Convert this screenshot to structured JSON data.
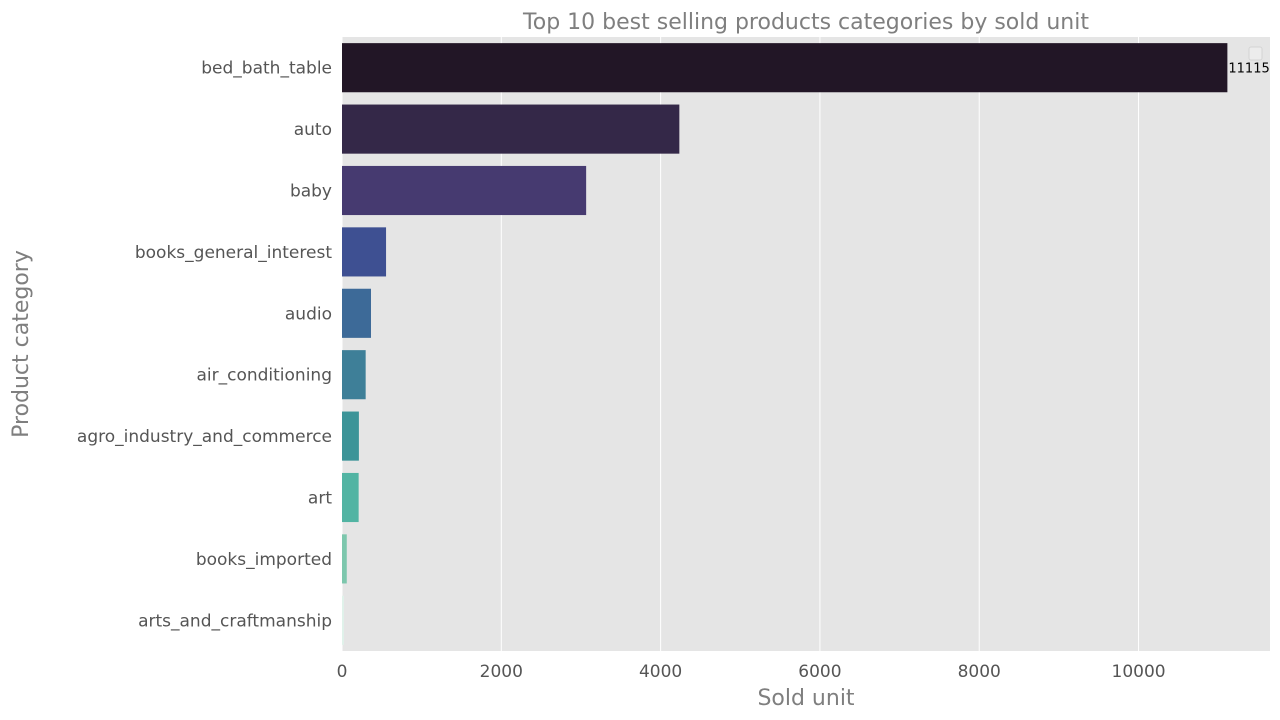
{
  "chart_data": {
    "type": "bar",
    "orientation": "horizontal",
    "title": "Top 10 best selling products categories by sold unit",
    "xlabel": "Sold unit",
    "ylabel": "Product category",
    "categories": [
      "bed_bath_table",
      "auto",
      "baby",
      "books_general_interest",
      "audio",
      "air_conditioning",
      "agro_industry_and_commerce",
      "art",
      "books_imported",
      "arts_and_craftmanship"
    ],
    "values": [
      11115,
      4235,
      3065,
      553,
      364,
      297,
      212,
      209,
      60,
      24
    ],
    "colors": [
      "#221626",
      "#342848",
      "#463a70",
      "#3e5092",
      "#3d6a98",
      "#3e7f98",
      "#3c9498",
      "#52b4a3",
      "#7dc7ad",
      "#e0f2ea"
    ],
    "data_labels": [
      {
        "index": 0,
        "text": "11115"
      }
    ],
    "xlim": [
      0,
      11650
    ],
    "xticks": [
      0,
      2000,
      4000,
      6000,
      8000,
      10000
    ],
    "grid": true,
    "legend": "top-right, empty"
  }
}
